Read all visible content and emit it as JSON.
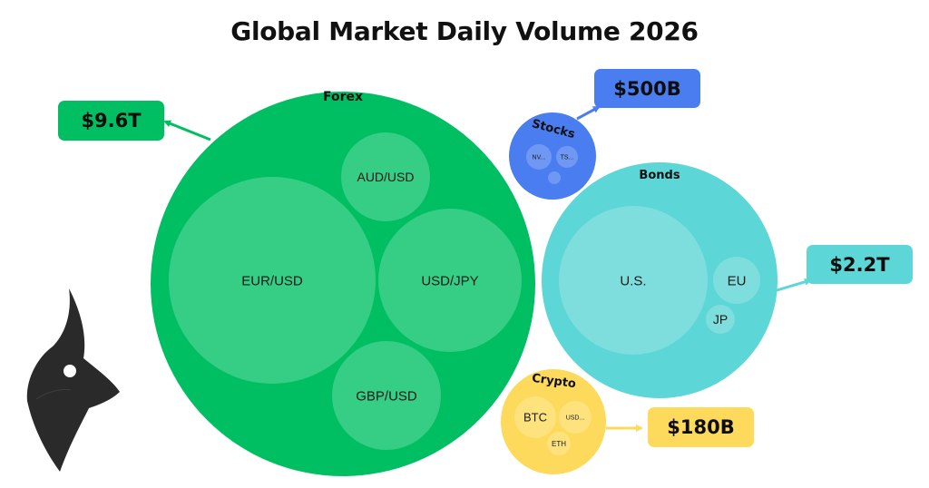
{
  "chart_data": {
    "type": "bubble",
    "title": "Global Market Daily Volume 2026",
    "groups": [
      {
        "name": "Forex",
        "value_label": "$9.6T",
        "color": "#00bf63",
        "inner_color": "#36cd85",
        "children": [
          {
            "name": "EUR/USD"
          },
          {
            "name": "USD/JPY"
          },
          {
            "name": "AUD/USD"
          },
          {
            "name": "GBP/USD"
          }
        ]
      },
      {
        "name": "Stocks",
        "value_label": "$500B",
        "color": "#4a7df0",
        "inner_color": "#6e98f4",
        "children": [
          {
            "name": "NV..."
          },
          {
            "name": "TS..."
          },
          {
            "name": ""
          }
        ]
      },
      {
        "name": "Bonds",
        "value_label": "$2.2T",
        "color": "#5cd6d6",
        "inner_color": "#7edede",
        "children": [
          {
            "name": "U.S."
          },
          {
            "name": "EU"
          },
          {
            "name": "JP"
          }
        ]
      },
      {
        "name": "Crypto",
        "value_label": "$180B",
        "color": "#fdda5b",
        "inner_color": "#fde27e",
        "children": [
          {
            "name": "BTC"
          },
          {
            "name": "USD..."
          },
          {
            "name": "ETH"
          }
        ]
      }
    ]
  },
  "logo": {
    "icon": "bull-head-logo-icon",
    "color": "#2a2a2a"
  }
}
